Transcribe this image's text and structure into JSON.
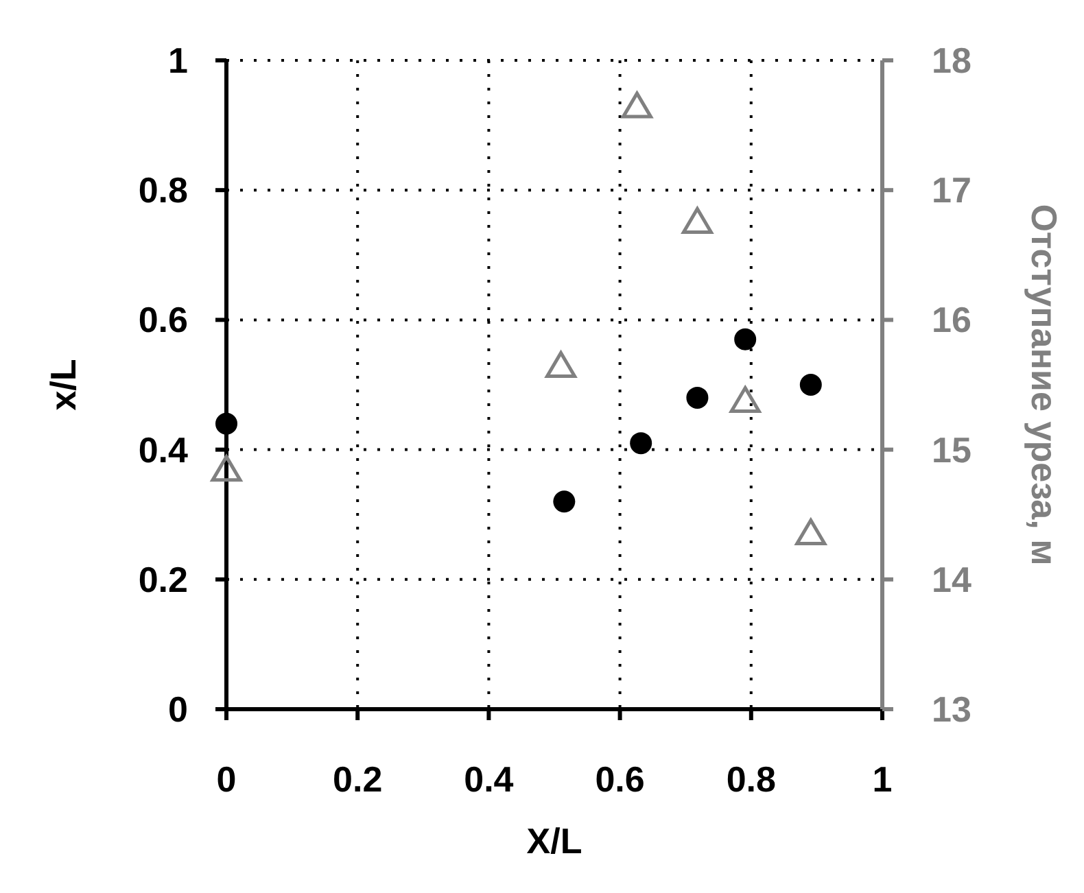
{
  "chart_data": {
    "type": "scatter",
    "xlabel": "X/L",
    "ylabel": "x/L",
    "y2label": "Отступание уреза, м",
    "xlim": [
      0,
      1
    ],
    "xticks": [
      0,
      0.2,
      0.4,
      0.6,
      0.8,
      1
    ],
    "ylim": [
      0,
      1
    ],
    "yticks": [
      0,
      0.2,
      0.4,
      0.6,
      0.8,
      1
    ],
    "y2lim": [
      13,
      18
    ],
    "y2ticks": [
      13,
      14,
      15,
      16,
      17,
      18
    ],
    "grid": true,
    "series": [
      {
        "color": "#000000",
        "marker": "circle",
        "x": [
          0,
          0.515,
          0.632,
          0.718,
          0.791,
          0.891
        ],
        "values": [
          0.44,
          0.32,
          0.41,
          0.48,
          0.57,
          0.5
        ]
      },
      {
        "color": "#808080",
        "marker": "triangle",
        "axis": "y2",
        "x": [
          0,
          0.51,
          0.626,
          0.718,
          0.791,
          0.891
        ],
        "values": [
          14.84,
          15.64,
          17.64,
          16.75,
          15.37,
          14.35
        ]
      }
    ]
  }
}
